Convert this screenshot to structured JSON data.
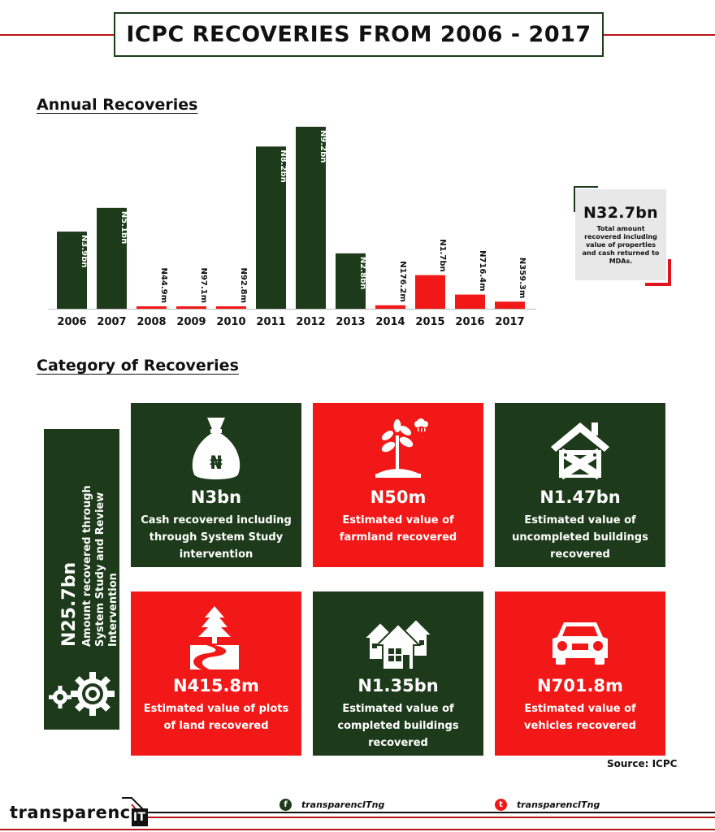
{
  "title": "ICPC RECOVERIES FROM 2006 - 2017",
  "annual_heading": "Annual Recoveries",
  "category_heading": "Category of Recoveries",
  "colors": {
    "green": "#1d3b1a",
    "red": "#f21818",
    "accent": "#b8151b"
  },
  "chart_data": {
    "type": "bar",
    "title": "Annual Recoveries",
    "categories": [
      "2006",
      "2007",
      "2008",
      "2009",
      "2010",
      "2011",
      "2012",
      "2013",
      "2014",
      "2015",
      "2016",
      "2017"
    ],
    "values_bn": [
      3.9,
      5.1,
      0.0449,
      0.0971,
      0.0928,
      8.2,
      9.2,
      2.8,
      0.1762,
      1.7,
      0.7164,
      0.3593
    ],
    "labels": [
      "N3.9bn",
      "N5.1bn",
      "N44.9m",
      "N97.1m",
      "N92.8m",
      "N8.2bn",
      "N9.2bn",
      "N2.8bn",
      "N176.2m",
      "N1.7bn",
      "N716.4m",
      "N359.3m"
    ],
    "bar_colors": [
      "green",
      "green",
      "red",
      "red",
      "red",
      "green",
      "green",
      "green",
      "red",
      "red",
      "red",
      "red"
    ],
    "ylim": [
      0,
      9.2
    ],
    "xlabel": "",
    "ylabel": ""
  },
  "total": {
    "value": "N32.7bn",
    "description": "Total amount recovered including value of properties and cash returned to MDAs."
  },
  "side_panel": {
    "value": "N25.7bn",
    "description": "Amount recovered through System Study and Review Intervention",
    "icon": "gears-icon"
  },
  "cards": [
    {
      "value": "N3bn",
      "description": "Cash recovered including through System Study intervention",
      "icon": "money-bag-icon",
      "color": "green"
    },
    {
      "value": "N50m",
      "description": "Estimated value of farmland recovered",
      "icon": "plant-icon",
      "color": "red"
    },
    {
      "value": "N1.47bn",
      "description": "Estimated value of uncompleted buildings recovered",
      "icon": "uncompleted-house-icon",
      "color": "green"
    },
    {
      "value": "N415.8m",
      "description": "Estimated value of plots of land recovered",
      "icon": "land-plot-icon",
      "color": "red"
    },
    {
      "value": "N1.35bn",
      "description": "Estimated value of completed buildings recovered",
      "icon": "houses-icon",
      "color": "green"
    },
    {
      "value": "N701.8m",
      "description": "Estimated value of vehicles recovered",
      "icon": "car-icon",
      "color": "red"
    }
  ],
  "source": "Source: ICPC",
  "footer": {
    "brand": "transparenc",
    "brand_mark": "IT",
    "facebook_handle": "transparencITng",
    "twitter_handle": "transparencITng",
    "facebook_icon": "facebook-icon",
    "twitter_icon": "twitter-icon"
  }
}
